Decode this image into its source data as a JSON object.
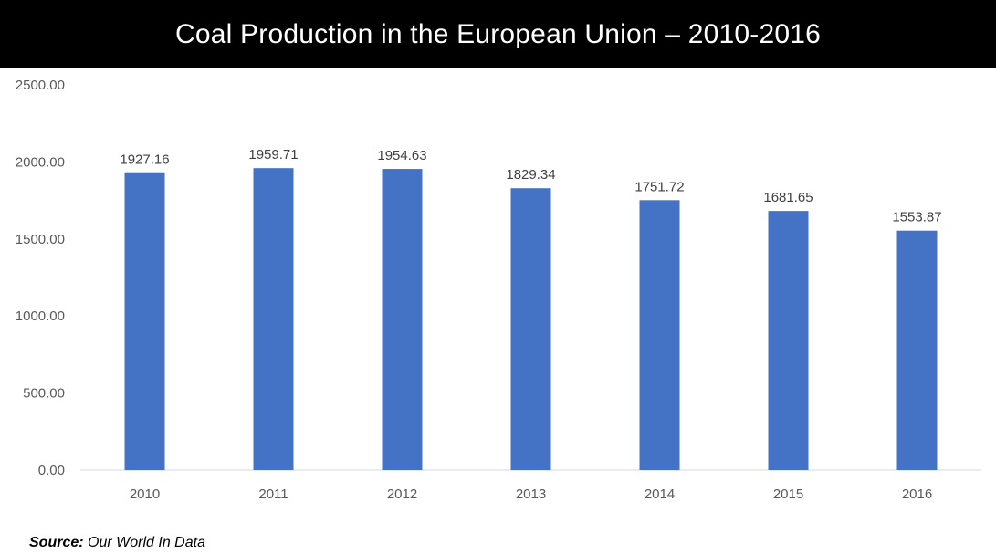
{
  "title": "Coal Production in the European Union – 2010-2016",
  "source": {
    "label": "Source:",
    "text": "Our World In Data"
  },
  "colors": {
    "bar": "#4472C4",
    "title_bg": "#000000",
    "title_fg": "#ffffff",
    "axis_line": "#d9d9d9"
  },
  "chart_data": {
    "type": "bar",
    "title": "Coal Production in the European Union – 2010-2016",
    "xlabel": "",
    "ylabel": "",
    "categories": [
      "2010",
      "2011",
      "2012",
      "2013",
      "2014",
      "2015",
      "2016"
    ],
    "values": [
      1927.16,
      1959.71,
      1954.63,
      1829.34,
      1751.72,
      1681.65,
      1553.87
    ],
    "data_labels": [
      "1927.16",
      "1959.71",
      "1954.63",
      "1829.34",
      "1751.72",
      "1681.65",
      "1553.87"
    ],
    "ylim": [
      0,
      2500
    ],
    "yticks": [
      0,
      500,
      1000,
      1500,
      2000,
      2500
    ],
    "ytick_labels": [
      "0.00",
      "500.00",
      "1000.00",
      "1500.00",
      "2000.00",
      "2500.00"
    ],
    "grid": false,
    "legend": "none"
  }
}
